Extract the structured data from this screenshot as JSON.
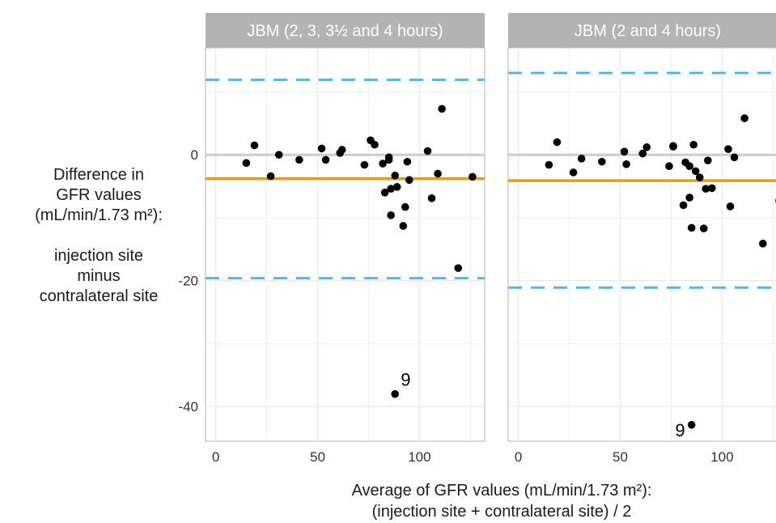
{
  "ylabel_lines": [
    "Difference in",
    "GFR values",
    "(mL/min/1.73 m²):",
    "",
    "injection site",
    "minus",
    "contralateral site"
  ],
  "xlabel_lines": [
    "Average of GFR values (mL/min/1.73 m²):",
    "(injection site + contralateral site) / 2"
  ],
  "colors": {
    "points": "#000000",
    "mean_line": "#E69F00",
    "limit_lines": "#56B4E9",
    "zero_line": "#cccccc",
    "strip_bg": "#b3b3b3",
    "strip_text": "#ffffff",
    "grid": "#ebebeb"
  },
  "chart_data": [
    {
      "type": "scatter",
      "panel_title": "JBM (2, 3, 3½ and 4 hours)",
      "xlim": [
        -5,
        132
      ],
      "ylim": [
        -45.5,
        17
      ],
      "x_ticks": [
        0,
        50,
        100
      ],
      "y_ticks": [
        0,
        -20,
        -40
      ],
      "zero_line": 0,
      "mean_difference": -3.8,
      "limits_of_agreement": [
        -19.6,
        11.9
      ],
      "points": [
        {
          "x": 15,
          "y": -1.3
        },
        {
          "x": 19,
          "y": 1.5
        },
        {
          "x": 27,
          "y": -3.4
        },
        {
          "x": 31,
          "y": 0.0
        },
        {
          "x": 41,
          "y": -0.8
        },
        {
          "x": 52,
          "y": 1.0
        },
        {
          "x": 54,
          "y": -0.8
        },
        {
          "x": 61,
          "y": 0.3
        },
        {
          "x": 62,
          "y": 0.8
        },
        {
          "x": 73,
          "y": -1.6
        },
        {
          "x": 76,
          "y": 2.3
        },
        {
          "x": 78,
          "y": 1.6
        },
        {
          "x": 82,
          "y": -1.4
        },
        {
          "x": 83,
          "y": -6.0
        },
        {
          "x": 85,
          "y": -0.4
        },
        {
          "x": 85,
          "y": -0.8
        },
        {
          "x": 86,
          "y": -5.4
        },
        {
          "x": 86,
          "y": -9.6
        },
        {
          "x": 88,
          "y": -3.3
        },
        {
          "x": 89,
          "y": -5.1
        },
        {
          "x": 92,
          "y": -11.3
        },
        {
          "x": 93,
          "y": -8.3
        },
        {
          "x": 94,
          "y": -1.1
        },
        {
          "x": 95,
          "y": -4.0
        },
        {
          "x": 104,
          "y": 0.6
        },
        {
          "x": 106,
          "y": -6.9
        },
        {
          "x": 109,
          "y": -3.0
        },
        {
          "x": 111,
          "y": 7.3
        },
        {
          "x": 119,
          "y": -18.0
        },
        {
          "x": 126,
          "y": -3.5
        },
        {
          "x": 88,
          "y": -38.0
        }
      ],
      "annotations": [
        {
          "text": "9",
          "x": 88,
          "y": -38.0
        }
      ]
    },
    {
      "type": "scatter",
      "panel_title": "JBM (2 and 4 hours)",
      "xlim": [
        -5,
        132
      ],
      "ylim": [
        -45.5,
        17
      ],
      "x_ticks": [
        0,
        50,
        100
      ],
      "y_ticks": [
        0,
        -20,
        -40
      ],
      "zero_line": 0,
      "mean_difference": -4.1,
      "limits_of_agreement": [
        -21.1,
        13.0
      ],
      "points": [
        {
          "x": 15,
          "y": -1.6
        },
        {
          "x": 19,
          "y": 2.0
        },
        {
          "x": 27,
          "y": -2.8
        },
        {
          "x": 31,
          "y": -0.6
        },
        {
          "x": 41,
          "y": -1.1
        },
        {
          "x": 52,
          "y": 0.5
        },
        {
          "x": 53,
          "y": -1.5
        },
        {
          "x": 61,
          "y": 0.2
        },
        {
          "x": 63,
          "y": 1.2
        },
        {
          "x": 74,
          "y": -1.8
        },
        {
          "x": 76,
          "y": 1.3
        },
        {
          "x": 76,
          "y": 1.4
        },
        {
          "x": 81,
          "y": -8.0
        },
        {
          "x": 82,
          "y": -1.2
        },
        {
          "x": 84,
          "y": -6.8
        },
        {
          "x": 84,
          "y": -1.8
        },
        {
          "x": 85,
          "y": -11.6
        },
        {
          "x": 86,
          "y": 1.6
        },
        {
          "x": 87,
          "y": -2.6
        },
        {
          "x": 89,
          "y": -3.6
        },
        {
          "x": 91,
          "y": -11.7
        },
        {
          "x": 92,
          "y": -5.4
        },
        {
          "x": 93,
          "y": -0.9
        },
        {
          "x": 95,
          "y": -5.3
        },
        {
          "x": 103,
          "y": 0.9
        },
        {
          "x": 104,
          "y": -8.2
        },
        {
          "x": 106,
          "y": -0.4
        },
        {
          "x": 111,
          "y": 5.8
        },
        {
          "x": 120,
          "y": -14.1
        },
        {
          "x": 128,
          "y": -7.3
        },
        {
          "x": 85,
          "y": -42.9
        }
      ],
      "annotations": [
        {
          "text": "9",
          "x": 85,
          "y": -42.9
        }
      ]
    }
  ]
}
